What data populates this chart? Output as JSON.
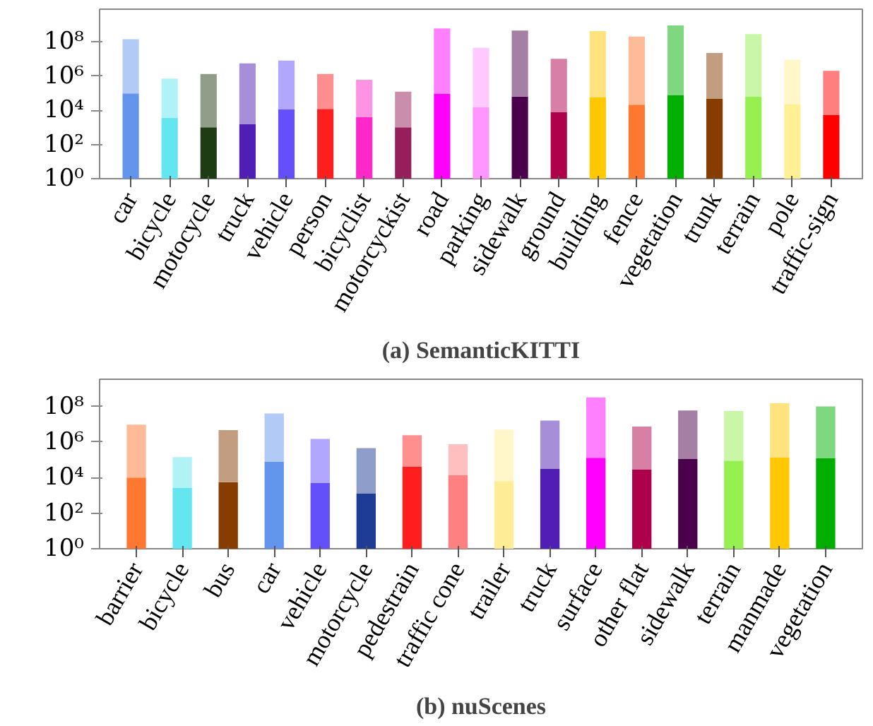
{
  "chart_data": [
    {
      "type": "bar",
      "title": "(a) SemanticKITTI",
      "log": true,
      "stacked": true,
      "ylim": [
        1,
        8000000000.0
      ],
      "yticks": [
        {
          "value": 1,
          "label": "10⁰"
        },
        {
          "value": 100,
          "label": "10²"
        },
        {
          "value": 10000,
          "label": "10⁴"
        },
        {
          "value": 1000000,
          "label": "10⁶"
        },
        {
          "value": 100000000,
          "label": "10⁸"
        }
      ],
      "categories": [
        "car",
        "bicycle",
        "motocycle",
        "truck",
        "vehicle",
        "person",
        "bicyclist",
        "motorcyckist",
        "road",
        "parking",
        "sidewalk",
        "ground",
        "building",
        "fence",
        "vegetation",
        "trunk",
        "terrain",
        "pole",
        "traffic-sign"
      ],
      "series": [
        {
          "values": [
            95000.0,
            3600.0,
            1000.0,
            1500.0,
            11000.0,
            12000.0,
            3900.0,
            1000.0,
            90000.0,
            15000.0,
            63000.0,
            8000.0,
            59000.0,
            21000.0,
            78000.0,
            48000.0,
            63000.0,
            23000.0,
            5400.0
          ],
          "colors": [
            "#6495ed",
            "#64e6f0",
            "#1e3c14",
            "#501eb4",
            "#6450fa",
            "#ff1e1e",
            "#ff28c8",
            "#961e5a",
            "#ff00ff",
            "#ff96ff",
            "#4b004b",
            "#af004b",
            "#ffc800",
            "#ff7832",
            "#00af00",
            "#873c00",
            "#96f050",
            "#fff096",
            "#ff0000"
          ]
        },
        {
          "values": [
            140000000.0,
            700000.0,
            1300000.0,
            5400000.0,
            8000000.0,
            1300000.0,
            600000.0,
            120000.0,
            600000000.0,
            44000000.0,
            450000000.0,
            10000000.0,
            420000000.0,
            200000000.0,
            900000000.0,
            22000000.0,
            280000000.0,
            9000000.0,
            2000000.0
          ],
          "colors": [
            "#b1caf6",
            "#b1f2f7",
            "#8f9d89",
            "#a78ed9",
            "#b1a7fc",
            "#ff8e8e",
            "#ff93e3",
            "#ca8eac",
            "#ff80ff",
            "#ffcaff",
            "#a57fa5",
            "#d77fa5",
            "#ffe37f",
            "#ffbb98",
            "#7fd77f",
            "#c39d7f",
            "#caf7a7",
            "#fff7ca",
            "#ff7f7f"
          ]
        }
      ]
    },
    {
      "type": "bar",
      "title": "(b) nuScenes",
      "log": true,
      "stacked": true,
      "ylim": [
        1,
        3400000000.0
      ],
      "yticks": [
        {
          "value": 1,
          "label": "10⁰"
        },
        {
          "value": 100,
          "label": "10²"
        },
        {
          "value": 10000,
          "label": "10⁴"
        },
        {
          "value": 1000000,
          "label": "10⁶"
        },
        {
          "value": 100000000,
          "label": "10⁸"
        }
      ],
      "categories": [
        "barrier",
        "bicycle",
        "bus",
        "car",
        "vehicle",
        "motorcycle",
        "pedestrain",
        "traffic cone",
        "trailer",
        "truck",
        "surface",
        "other flat",
        "sidewalk",
        "terrain",
        "manmade",
        "vegetation"
      ],
      "series": [
        {
          "values": [
            10000.0,
            2700.0,
            5500.0,
            81000.0,
            4900.0,
            1300.0,
            42000.0,
            14000.0,
            6300.0,
            32000.0,
            130000.0,
            28000.0,
            110000.0,
            91000.0,
            140000.0,
            120000.0
          ],
          "colors": [
            "#ff7832",
            "#64e6f0",
            "#873c00",
            "#6495ed",
            "#6450fa",
            "#1e3c96",
            "#ff1e1e",
            "#ff8080",
            "#ffec96",
            "#501eb4",
            "#ff00ff",
            "#af004b",
            "#4b004b",
            "#96f050",
            "#ffc800",
            "#00af00"
          ]
        },
        {
          "values": [
            9500000.0,
            140000.0,
            4700000.0,
            40000000.0,
            1500000.0,
            450000.0,
            2400000.0,
            740000.0,
            5000000.0,
            16000000.0,
            320000000.0,
            7400000.0,
            59000000.0,
            55000000.0,
            150000000.0,
            100000000.0
          ],
          "colors": [
            "#ffbb98",
            "#b1f2f7",
            "#c39d7f",
            "#b1caf6",
            "#b1a7fc",
            "#8e9dca",
            "#ff8e8e",
            "#ffbfbf",
            "#fff7ca",
            "#a78ed9",
            "#ff80ff",
            "#d77fa5",
            "#a57fa5",
            "#caf7a7",
            "#ffe37f",
            "#7fd77f"
          ]
        }
      ]
    }
  ]
}
